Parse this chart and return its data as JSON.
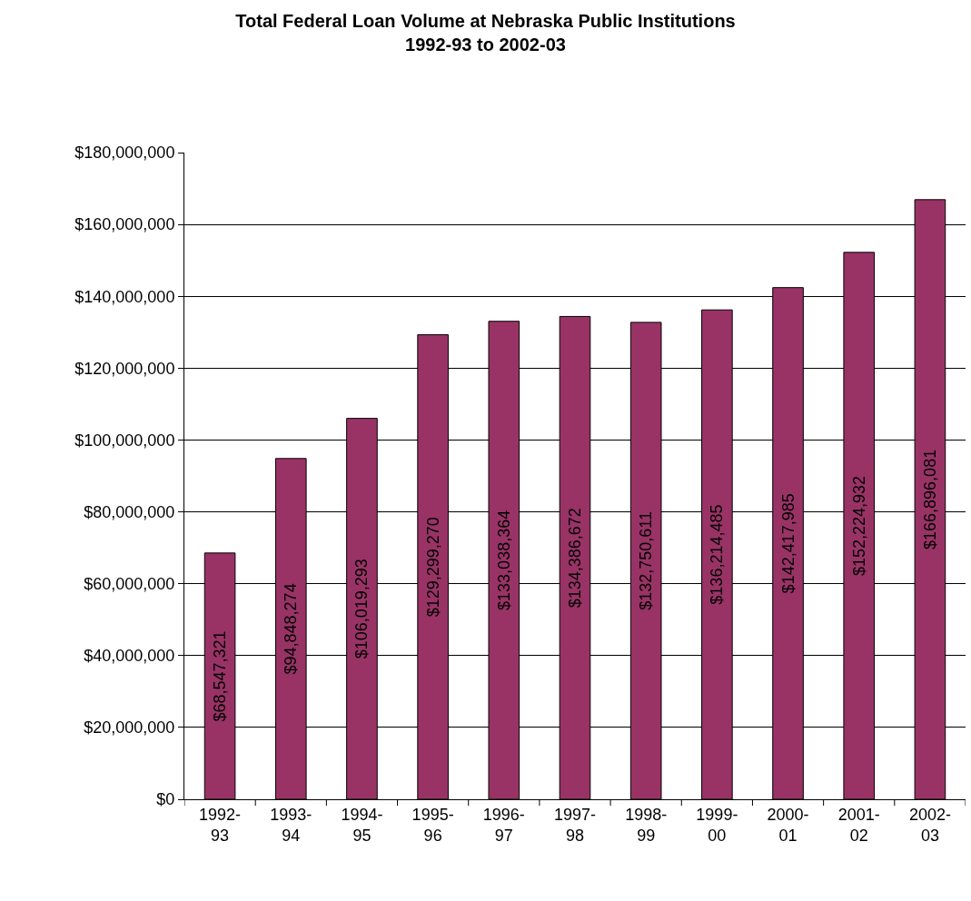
{
  "chart_data": {
    "type": "bar",
    "title": "Total Federal Loan Volume at Nebraska Public Institutions\n1992-93 to 2002-03",
    "categories": [
      "1992-93",
      "1993-94",
      "1994-95",
      "1995-96",
      "1996-97",
      "1997-98",
      "1998-99",
      "1999-00",
      "2000-01",
      "2001-02",
      "2002-03"
    ],
    "values": [
      68547321,
      94848274,
      106019293,
      129299270,
      133038364,
      134386672,
      132750611,
      136214485,
      142417985,
      152224932,
      166896081
    ],
    "value_labels": [
      "$68,547,321",
      "$94,848,274",
      "$106,019,293",
      "$129,299,270",
      "$133,038,364",
      "$134,386,672",
      "$132,750,611",
      "$136,214,485",
      "$142,417,985",
      "$152,224,932",
      "$166,896,081"
    ],
    "color": "#993366",
    "ylim": [
      0,
      180000000
    ],
    "yticks": [
      {
        "value": 0,
        "label": "$0"
      },
      {
        "value": 20000000,
        "label": "$20,000,000"
      },
      {
        "value": 40000000,
        "label": "$40,000,000"
      },
      {
        "value": 60000000,
        "label": "$60,000,000"
      },
      {
        "value": 80000000,
        "label": "$80,000,000"
      },
      {
        "value": 100000000,
        "label": "$100,000,000"
      },
      {
        "value": 120000000,
        "label": "$120,000,000"
      },
      {
        "value": 140000000,
        "label": "$140,000,000"
      },
      {
        "value": 160000000,
        "label": "$160,000,000"
      },
      {
        "value": 180000000,
        "label": "$180,000,000"
      }
    ],
    "grid": "y"
  }
}
